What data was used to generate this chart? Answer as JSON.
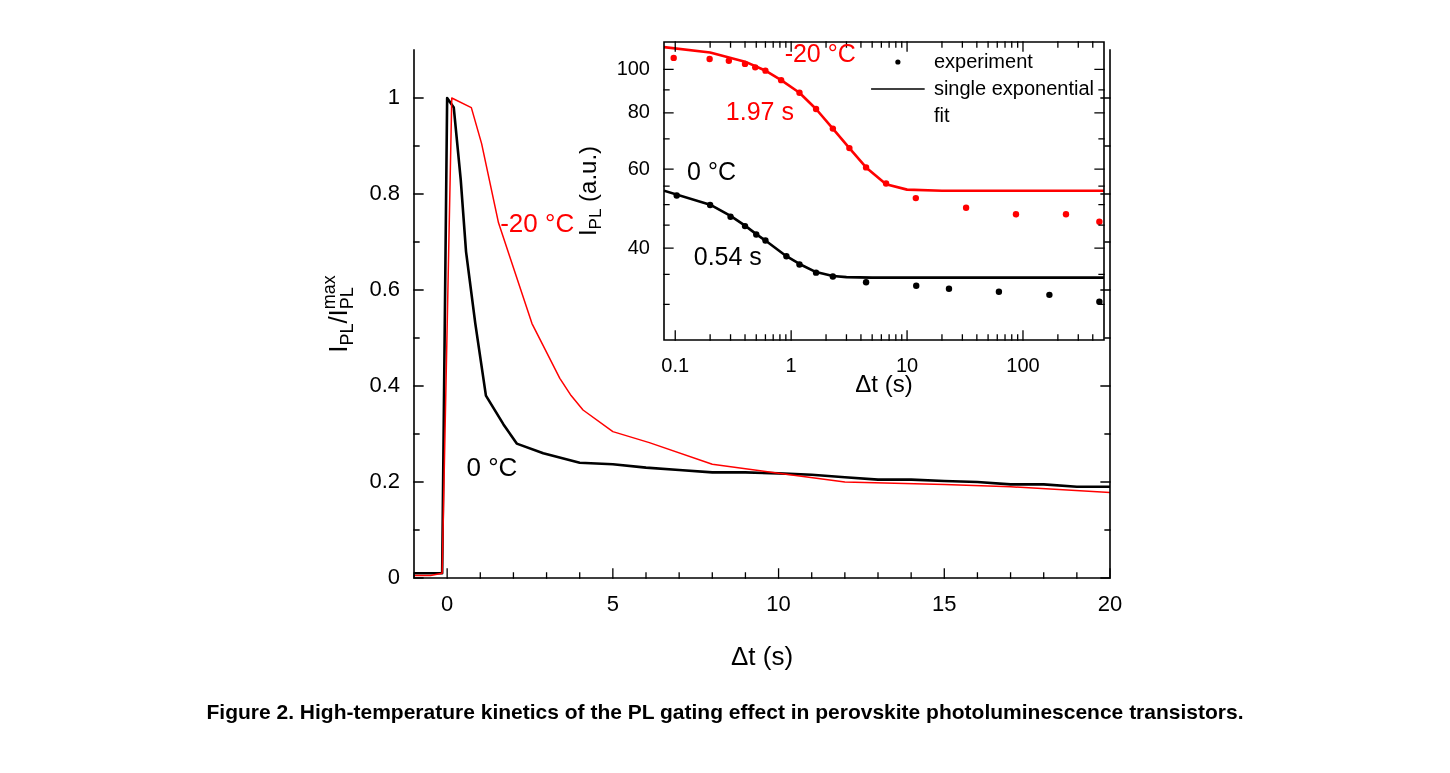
{
  "chart_data": [
    {
      "type": "line",
      "xlabel": "Δt (s)",
      "ylabel": "I$_{PL}$/I$_{PL}$$^{max}$",
      "xlim": [
        -1,
        20
      ],
      "ylim": [
        0,
        1.1
      ],
      "xticks": [
        {
          "value": -1,
          "label": null
        },
        0,
        {
          "value": 1,
          "label": null
        },
        {
          "value": 2,
          "label": null
        },
        {
          "value": 3,
          "label": null
        },
        {
          "value": 4,
          "label": null
        },
        5,
        {
          "value": 6,
          "label": null
        },
        {
          "value": 7,
          "label": null
        },
        {
          "value": 8,
          "label": null
        },
        {
          "value": 9,
          "label": null
        },
        10,
        {
          "value": 11,
          "label": null
        },
        {
          "value": 12,
          "label": null
        },
        {
          "value": 13,
          "label": null
        },
        {
          "value": 14,
          "label": null
        },
        15,
        {
          "value": 16,
          "label": null
        },
        {
          "value": 17,
          "label": null
        },
        {
          "value": 18,
          "label": null
        },
        {
          "value": 19,
          "label": null
        },
        20
      ],
      "yticks": [
        0,
        {
          "value": 0.1,
          "label": null
        },
        0.2,
        {
          "value": 0.3,
          "label": null
        },
        0.4,
        {
          "value": 0.5,
          "label": null
        },
        0.6,
        {
          "value": 0.7,
          "label": null
        },
        0.8,
        {
          "value": 0.9,
          "label": null
        },
        1
      ],
      "line_style": "solid",
      "series": [
        {
          "color": "#ff0000",
          "x": [
            -1,
            -0.5,
            -0.15,
            0.14,
            0.73,
            1.04,
            1.55,
            2.56,
            3.4,
            3.74,
            4.1,
            5,
            6.1,
            8,
            10,
            12,
            15,
            17,
            20
          ],
          "values": [
            0.005,
            0.005,
            0.01,
            1,
            0.98,
            0.905,
            0.74,
            0.53,
            0.416,
            0.38,
            0.35,
            0.305,
            0.282,
            0.237,
            0.218,
            0.2,
            0.195,
            0.19,
            0.178
          ]
        },
        {
          "color": "#000000",
          "x": [
            -1,
            -0.5,
            -0.15,
            0,
            0.2,
            0.41,
            0.57,
            0.85,
            1.17,
            1.7,
            2.1,
            2.9,
            4,
            5,
            6,
            7,
            8,
            9,
            10,
            11,
            12,
            13,
            14,
            15,
            16,
            17,
            18,
            19,
            20
          ],
          "values": [
            0.01,
            0.01,
            0.01,
            1,
            0.98,
            0.83,
            0.68,
            0.53,
            0.38,
            0.32,
            0.28,
            0.26,
            0.24,
            0.237,
            0.23,
            0.225,
            0.22,
            0.22,
            0.218,
            0.215,
            0.21,
            0.205,
            0.205,
            0.202,
            0.2,
            0.195,
            0.195,
            0.19,
            0.19
          ]
        }
      ],
      "annotations": [
        "-20 °C",
        "0 °C",
        "Figure 2.  High-temperature kinetics of the PL gating effect in perovskite photoluminescence transistors."
      ]
    },
    {
      "type": "scatter",
      "xlabel": "Δt (s)",
      "ylabel": "I$_{PL}$ (a.u.)",
      "log": "xy",
      "xlim": [
        0.08,
        500
      ],
      "ylim": [
        25,
        115
      ],
      "xticks": [
        0.1,
        {
          "value": 0.2,
          "label": null
        },
        {
          "value": 0.3,
          "label": null
        },
        {
          "value": 0.4,
          "label": null
        },
        {
          "value": 0.5,
          "label": null
        },
        {
          "value": 0.6,
          "label": null
        },
        {
          "value": 0.7,
          "label": null
        },
        {
          "value": 0.8,
          "label": null
        },
        {
          "value": 0.9,
          "label": null
        },
        1,
        {
          "value": 2,
          "label": null
        },
        {
          "value": 3,
          "label": null
        },
        {
          "value": 4,
          "label": null
        },
        {
          "value": 5,
          "label": null
        },
        {
          "value": 6,
          "label": null
        },
        {
          "value": 7,
          "label": null
        },
        {
          "value": 8,
          "label": null
        },
        {
          "value": 9,
          "label": null
        },
        10,
        {
          "value": 20,
          "label": null
        },
        {
          "value": 30,
          "label": null
        },
        {
          "value": 40,
          "label": null
        },
        {
          "value": 50,
          "label": null
        },
        {
          "value": 60,
          "label": null
        },
        {
          "value": 70,
          "label": null
        },
        {
          "value": 80,
          "label": null
        },
        {
          "value": 90,
          "label": null
        },
        100,
        {
          "value": 200,
          "label": null
        },
        {
          "value": 300,
          "label": null
        },
        {
          "value": 400,
          "label": null
        }
      ],
      "yticks": [
        {
          "value": 30,
          "label": null
        },
        {
          "value": 35,
          "label": null
        },
        40,
        {
          "value": 45,
          "label": null
        },
        {
          "value": 50,
          "label": null
        },
        {
          "value": 55,
          "label": null
        },
        60,
        {
          "value": 70,
          "label": null
        },
        80,
        {
          "value": 90,
          "label": null
        },
        100
      ],
      "legend": "top right",
      "series": [
        {
          "type": "scatter",
          "marker": "circle",
          "color": "#ff0000",
          "x": [
            0.097,
            0.198,
            0.29,
            0.4,
            0.49,
            0.6,
            0.82,
            1.18,
            1.64,
            2.29,
            3.18,
            4.43,
            6.59,
            11.9,
            32.3,
            87,
            235,
            456
          ],
          "values": [
            106,
            105.4,
            104.5,
            102.8,
            101,
            99.3,
            94.6,
            88.7,
            81.6,
            73.8,
            66.8,
            60.5,
            55.7,
            51.7,
            49.2,
            47.6,
            47.6,
            45.8
          ]
        },
        {
          "type": "line",
          "color": "#ff0000",
          "x": [
            0.08,
            0.2,
            0.4,
            0.6,
            0.82,
            1.18,
            1.64,
            2.29,
            3.18,
            4.43,
            6.59,
            10,
            20,
            500
          ],
          "values": [
            112,
            109,
            104,
            99.3,
            94.6,
            88.7,
            81.6,
            73.8,
            66.8,
            60.5,
            55.5,
            54,
            53.7,
            53.7
          ]
        },
        {
          "type": "scatter",
          "marker": "circle",
          "name": "experiment",
          "color": "#000000",
          "x": [
            0.103,
            0.2,
            0.3,
            0.4,
            0.5,
            0.6,
            0.91,
            1.18,
            1.64,
            2.29,
            4.43,
            12,
            23,
            62,
            169,
            456
          ],
          "values": [
            52.4,
            49.9,
            47,
            44.8,
            42.9,
            41.6,
            38.4,
            36.8,
            35.3,
            34.6,
            33.6,
            33,
            32.5,
            32,
            31.5,
            30.4
          ]
        },
        {
          "type": "line",
          "name": "single exponential fit",
          "color": "#000000",
          "x": [
            0.08,
            0.2,
            0.3,
            0.4,
            0.5,
            0.6,
            0.91,
            1.18,
            1.64,
            2.29,
            3,
            5,
            500
          ],
          "values": [
            53.7,
            50,
            47.2,
            44.9,
            43,
            41.6,
            38.4,
            36.9,
            35.4,
            34.7,
            34.5,
            34.4,
            34.4
          ]
        }
      ],
      "annotations": [
        "-20 °C",
        "1.97 s",
        "0 °C",
        "0.54 s"
      ]
    }
  ]
}
